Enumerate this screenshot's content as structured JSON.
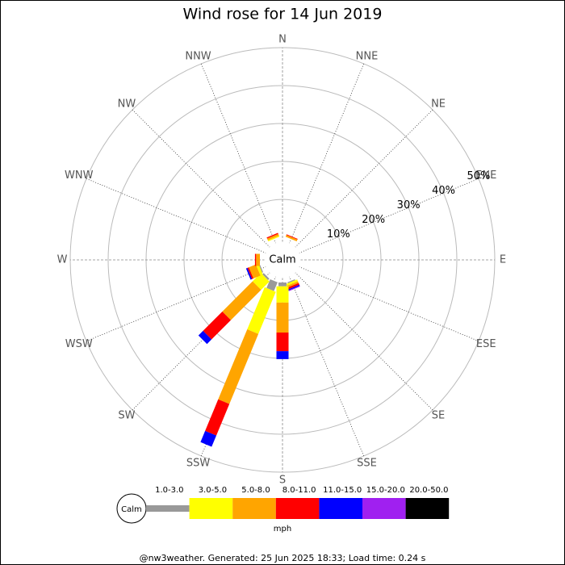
{
  "chart_data": {
    "type": "windrose",
    "title": "Wind rose for 14 Jun 2019",
    "directions": [
      "N",
      "NNE",
      "NE",
      "ENE",
      "E",
      "ESE",
      "SE",
      "SSE",
      "S",
      "SSW",
      "SW",
      "WSW",
      "W",
      "WNW",
      "NW",
      "NNW"
    ],
    "calm_label": "Calm",
    "unit": "mph",
    "footer": "@nw3weather. Generated: 25 Jun 2025 18:33; Load time: 0.24 s",
    "rlim": [
      0,
      50
    ],
    "rticks": [
      {
        "value": 10,
        "label": "10%"
      },
      {
        "value": 20,
        "label": "20%"
      },
      {
        "value": 30,
        "label": "30%"
      },
      {
        "value": 40,
        "label": "40%"
      },
      {
        "value": 50,
        "label": "50%"
      }
    ],
    "series": [
      {
        "name": "1.0-3.0",
        "color": "#999999",
        "values": [
          0,
          0,
          0,
          0,
          0,
          0,
          0,
          0.3,
          1,
          2.5,
          0.5,
          0.3,
          0,
          0,
          0,
          0
        ]
      },
      {
        "name": "3.0-5.0",
        "color": "#ffff00",
        "values": [
          0,
          0,
          0,
          0,
          0,
          0,
          0,
          0.5,
          4.3,
          12,
          3.1,
          0.7,
          0,
          0,
          0,
          0.3
        ]
      },
      {
        "name": "5.0-8.0",
        "color": "#ffa500",
        "values": [
          0,
          0.5,
          0,
          0,
          0,
          0,
          0,
          0.5,
          7.9,
          20,
          11.3,
          2,
          1,
          0,
          0,
          0.5
        ]
      },
      {
        "name": "8.0-11.0",
        "color": "#ff0000",
        "values": [
          0,
          0.2,
          0,
          0,
          0,
          0,
          0,
          0.5,
          4.9,
          9,
          7.2,
          0.4,
          0.3,
          0,
          0,
          0.3
        ]
      },
      {
        "name": "11.0-15.0",
        "color": "#0000ff",
        "values": [
          0,
          0,
          0,
          0,
          0,
          0,
          0,
          0.3,
          2.1,
          3.2,
          1.7,
          0.4,
          0,
          0,
          0,
          0
        ]
      },
      {
        "name": "15.0-20.0",
        "color": "#a020f0",
        "values": [
          0,
          0,
          0,
          0,
          0,
          0,
          0,
          0.2,
          0,
          0,
          0,
          0,
          0,
          0,
          0,
          0
        ]
      },
      {
        "name": "20.0-50.0",
        "color": "#000000",
        "values": [
          0,
          0,
          0,
          0,
          0,
          0,
          0,
          0,
          0,
          0,
          0,
          0,
          0,
          0,
          0,
          0
        ]
      }
    ]
  }
}
